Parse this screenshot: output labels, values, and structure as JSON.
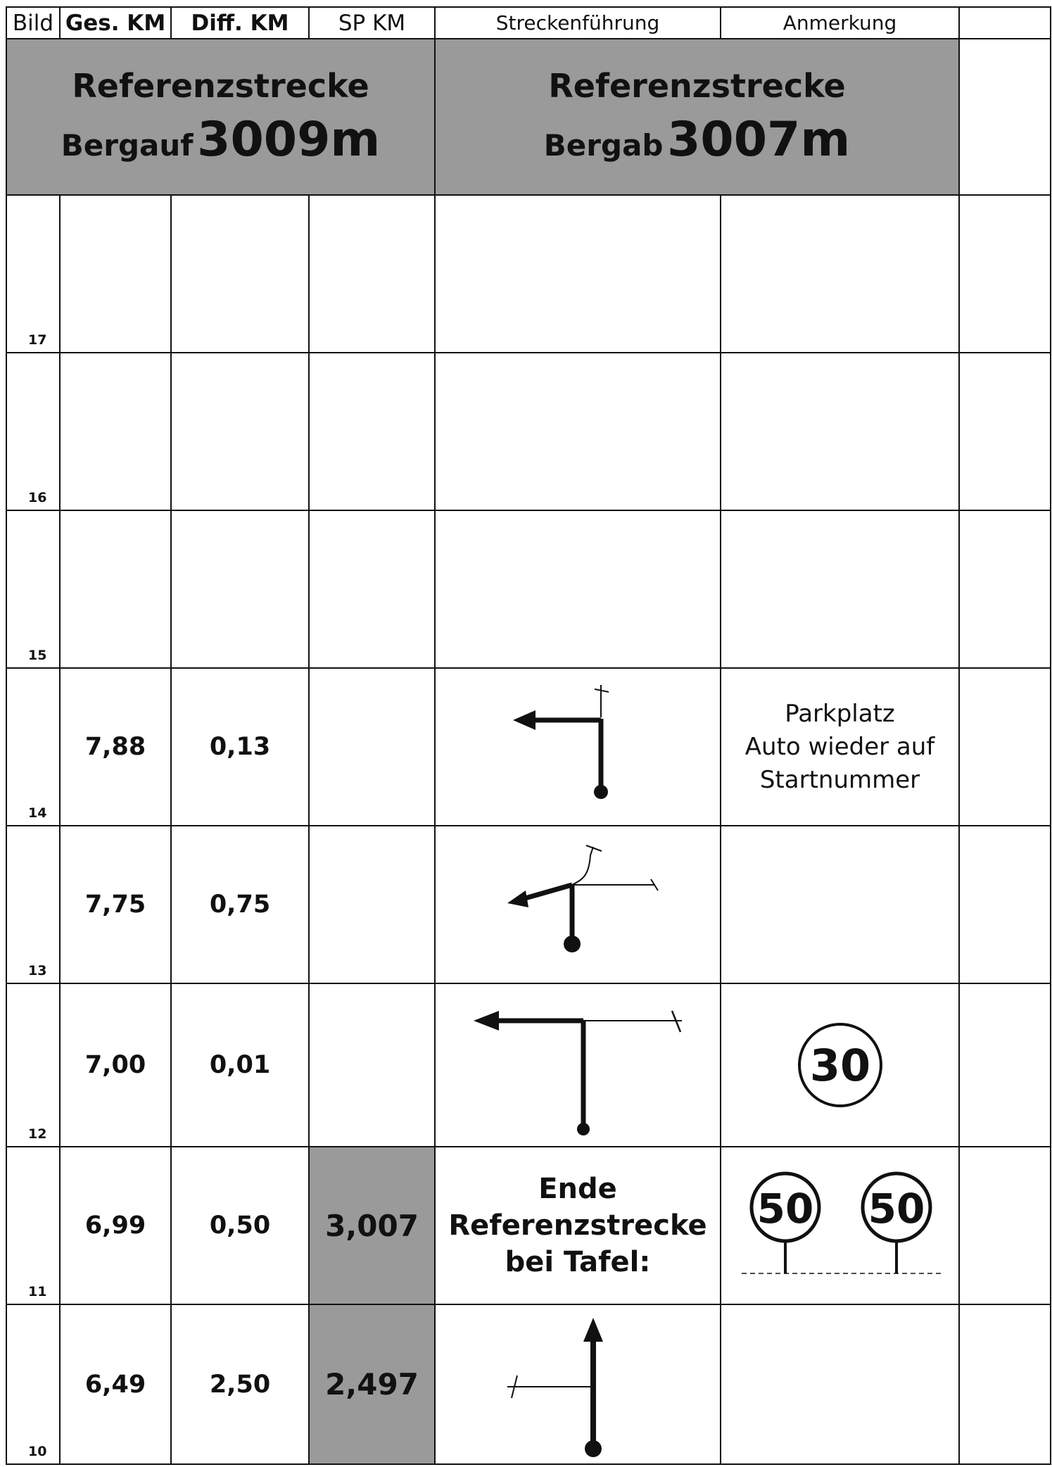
{
  "header": {
    "bild": "Bild",
    "ges_km": "Ges. KM",
    "diff_km": "Diff. KM",
    "sp_km": "SP KM",
    "strecke": "Streckenführung",
    "anmerkung": "Anmerkung"
  },
  "reference": {
    "left_title": "Referenzstrecke",
    "left_sub": "Bergauf",
    "left_dist": "3009m",
    "right_title": "Referenzstrecke",
    "right_sub": "Bergab",
    "right_dist": "3007m"
  },
  "rows": [
    {
      "bild": "17",
      "ges": "",
      "diff": "",
      "sp": ""
    },
    {
      "bild": "16",
      "ges": "",
      "diff": "",
      "sp": ""
    },
    {
      "bild": "15",
      "ges": "",
      "diff": "",
      "sp": ""
    },
    {
      "bild": "14",
      "ges": "7,88",
      "diff": "0,13",
      "sp": "",
      "note": [
        "Parkplatz",
        "Auto wieder auf",
        "Startnummer"
      ]
    },
    {
      "bild": "13",
      "ges": "7,75",
      "diff": "0,75",
      "sp": ""
    },
    {
      "bild": "12",
      "ges": "7,00",
      "diff": "0,01",
      "sp": "",
      "sign": "30"
    },
    {
      "bild": "11",
      "ges": "6,99",
      "diff": "0,50",
      "sp": "3,007",
      "route_text": [
        "Ende",
        "Referenzstrecke",
        "bei Tafel:"
      ],
      "signs": [
        "50",
        "50"
      ]
    },
    {
      "bild": "10",
      "ges": "6,49",
      "diff": "2,50",
      "sp": "2,497"
    }
  ],
  "colors": {
    "grey": "#9a9a9a",
    "line": "#111111"
  }
}
